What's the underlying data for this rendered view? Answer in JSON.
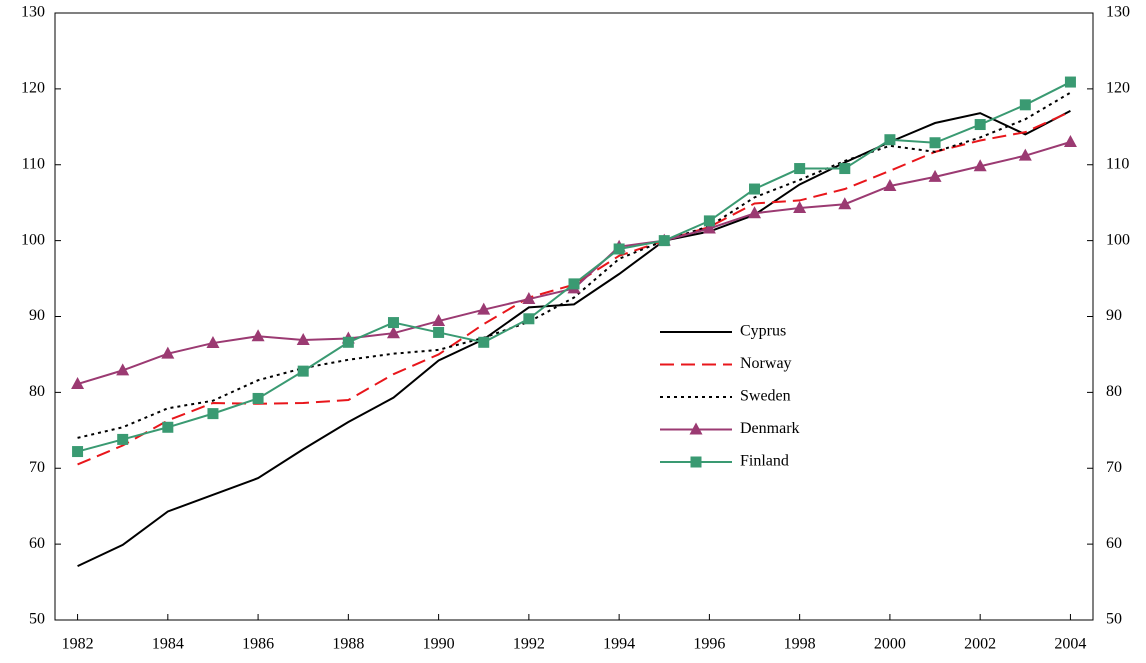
{
  "chart_data": {
    "type": "line",
    "x": [
      1982,
      1983,
      1984,
      1985,
      1986,
      1987,
      1988,
      1989,
      1990,
      1991,
      1992,
      1993,
      1994,
      1995,
      1996,
      1997,
      1998,
      1999,
      2000,
      2001,
      2002,
      2003,
      2004
    ],
    "series": [
      {
        "name": "Cyprus",
        "color": "#000000",
        "dash": "solid",
        "marker": "none",
        "values": [
          57.1,
          59.9,
          64.3,
          66.5,
          68.7,
          72.5,
          76.1,
          79.3,
          84.2,
          87.0,
          91.2,
          91.6,
          95.6,
          100,
          101.2,
          103.4,
          107.4,
          110.3,
          113.0,
          115.5,
          116.8,
          114.0,
          117.1
        ]
      },
      {
        "name": "Norway",
        "color": "#e8161b",
        "dash": "dashed",
        "marker": "none",
        "values": [
          70.5,
          73.0,
          76.3,
          78.6,
          78.5,
          78.6,
          79.0,
          82.4,
          85.0,
          89.0,
          92.5,
          94.2,
          98.0,
          100,
          101.8,
          104.9,
          105.3,
          106.8,
          109.2,
          111.7,
          113.2,
          114.3,
          117.0
        ]
      },
      {
        "name": "Sweden",
        "color": "#000000",
        "dash": "dotted",
        "marker": "none",
        "values": [
          74.0,
          75.4,
          77.9,
          78.9,
          81.6,
          83.2,
          84.3,
          85.1,
          85.6,
          87.2,
          89.3,
          92.5,
          97.6,
          100,
          101.9,
          105.7,
          108.0,
          110.5,
          112.5,
          111.7,
          113.6,
          116.0,
          119.5
        ]
      },
      {
        "name": "Denmark",
        "color": "#9b3a72",
        "dash": "solid",
        "marker": "triangle",
        "values": [
          81.1,
          82.9,
          85.1,
          86.5,
          87.4,
          86.9,
          87.1,
          87.8,
          89.4,
          90.9,
          92.3,
          93.7,
          99.2,
          100,
          101.6,
          103.6,
          104.3,
          104.8,
          107.2,
          108.4,
          109.8,
          111.2,
          113.0
        ]
      },
      {
        "name": "Finland",
        "color": "#3a9a72",
        "dash": "solid",
        "marker": "square",
        "values": [
          72.2,
          73.8,
          75.4,
          77.2,
          79.2,
          82.8,
          86.6,
          89.2,
          87.9,
          86.6,
          89.7,
          94.3,
          98.9,
          100,
          102.6,
          106.8,
          109.5,
          109.5,
          113.3,
          112.9,
          115.3,
          117.9,
          120.9
        ]
      }
    ],
    "xlim": [
      1981.5,
      2004.5
    ],
    "xticks": [
      1982,
      1984,
      1986,
      1988,
      1990,
      1992,
      1994,
      1996,
      1998,
      2000,
      2002,
      2004
    ],
    "ylim": [
      50,
      130
    ],
    "yticks": [
      50,
      60,
      70,
      80,
      90,
      100,
      110,
      120,
      130
    ],
    "y2lim": [
      50,
      130
    ],
    "y2ticks": [
      50,
      60,
      70,
      80,
      90,
      100,
      110,
      120,
      130
    ],
    "grid": false,
    "legend": "center-right"
  }
}
